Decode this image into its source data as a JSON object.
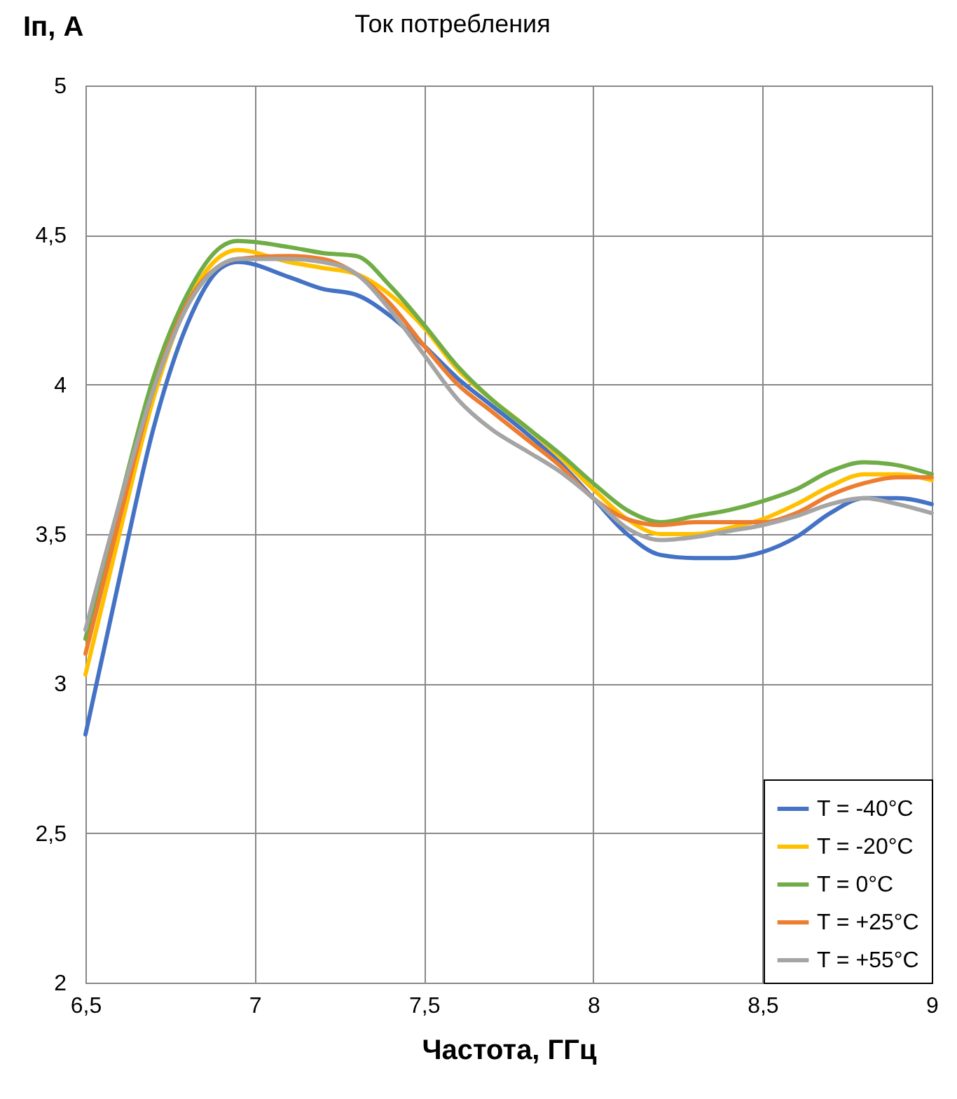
{
  "chart_data": {
    "type": "line",
    "title": "Ток потребления",
    "xlabel": "Частота, ГГц",
    "ylabel": "Iп, A",
    "x": [
      6.5,
      6.6,
      6.7,
      6.8,
      6.9,
      6.95,
      7.1,
      7.2,
      7.3,
      7.4,
      7.5,
      7.6,
      7.7,
      7.8,
      7.9,
      8.0,
      8.1,
      8.2,
      8.3,
      8.4,
      8.5,
      8.6,
      8.7,
      8.8,
      8.9,
      9.0
    ],
    "series": [
      {
        "name": "T = -40°C",
        "color": "#4472c4",
        "values": [
          2.83,
          3.35,
          3.85,
          4.2,
          4.39,
          4.41,
          4.36,
          4.32,
          4.3,
          4.23,
          4.13,
          4.02,
          3.93,
          3.84,
          3.74,
          3.62,
          3.5,
          3.43,
          3.42,
          3.42,
          3.44,
          3.49,
          3.57,
          3.62,
          3.62,
          3.6
        ]
      },
      {
        "name": "T = -20°C",
        "color": "#ffc000",
        "values": [
          3.03,
          3.5,
          3.95,
          4.27,
          4.43,
          4.45,
          4.41,
          4.39,
          4.37,
          4.3,
          4.19,
          4.05,
          3.95,
          3.86,
          3.76,
          3.65,
          3.55,
          3.5,
          3.5,
          3.52,
          3.55,
          3.6,
          3.66,
          3.7,
          3.7,
          3.68
        ]
      },
      {
        "name": "T = 0°C",
        "color": "#70ad47",
        "values": [
          3.15,
          3.6,
          4.02,
          4.3,
          4.46,
          4.48,
          4.46,
          4.44,
          4.43,
          4.33,
          4.2,
          4.06,
          3.95,
          3.86,
          3.77,
          3.67,
          3.58,
          3.54,
          3.56,
          3.58,
          3.61,
          3.65,
          3.71,
          3.74,
          3.73,
          3.7
        ]
      },
      {
        "name": "T = +25°C",
        "color": "#ed7d31",
        "values": [
          3.1,
          3.55,
          3.98,
          4.27,
          4.4,
          4.42,
          4.43,
          4.42,
          4.37,
          4.27,
          4.13,
          4.0,
          3.91,
          3.82,
          3.73,
          3.62,
          3.55,
          3.53,
          3.54,
          3.54,
          3.54,
          3.57,
          3.63,
          3.67,
          3.69,
          3.69
        ]
      },
      {
        "name": "T = +55°C",
        "color": "#a5a5a5",
        "values": [
          3.18,
          3.6,
          3.98,
          4.26,
          4.4,
          4.42,
          4.42,
          4.41,
          4.37,
          4.25,
          4.1,
          3.95,
          3.85,
          3.78,
          3.71,
          3.62,
          3.52,
          3.48,
          3.49,
          3.51,
          3.53,
          3.56,
          3.6,
          3.62,
          3.6,
          3.57
        ]
      }
    ],
    "xlim": [
      6.5,
      9
    ],
    "xticks": [
      {
        "value": 6.5,
        "label": "6,5"
      },
      7,
      {
        "value": 7.5,
        "label": "7,5"
      },
      8,
      {
        "value": 8.5,
        "label": "8,5"
      },
      9
    ],
    "ylim": [
      2,
      5
    ],
    "yticks": [
      2,
      {
        "value": 2.5,
        "label": "2,5"
      },
      3,
      {
        "value": 3.5,
        "label": "3,5"
      },
      4,
      {
        "value": 4.5,
        "label": "4,5"
      },
      5
    ],
    "grid": true,
    "legend": "bottom right",
    "line_style": "solid"
  }
}
